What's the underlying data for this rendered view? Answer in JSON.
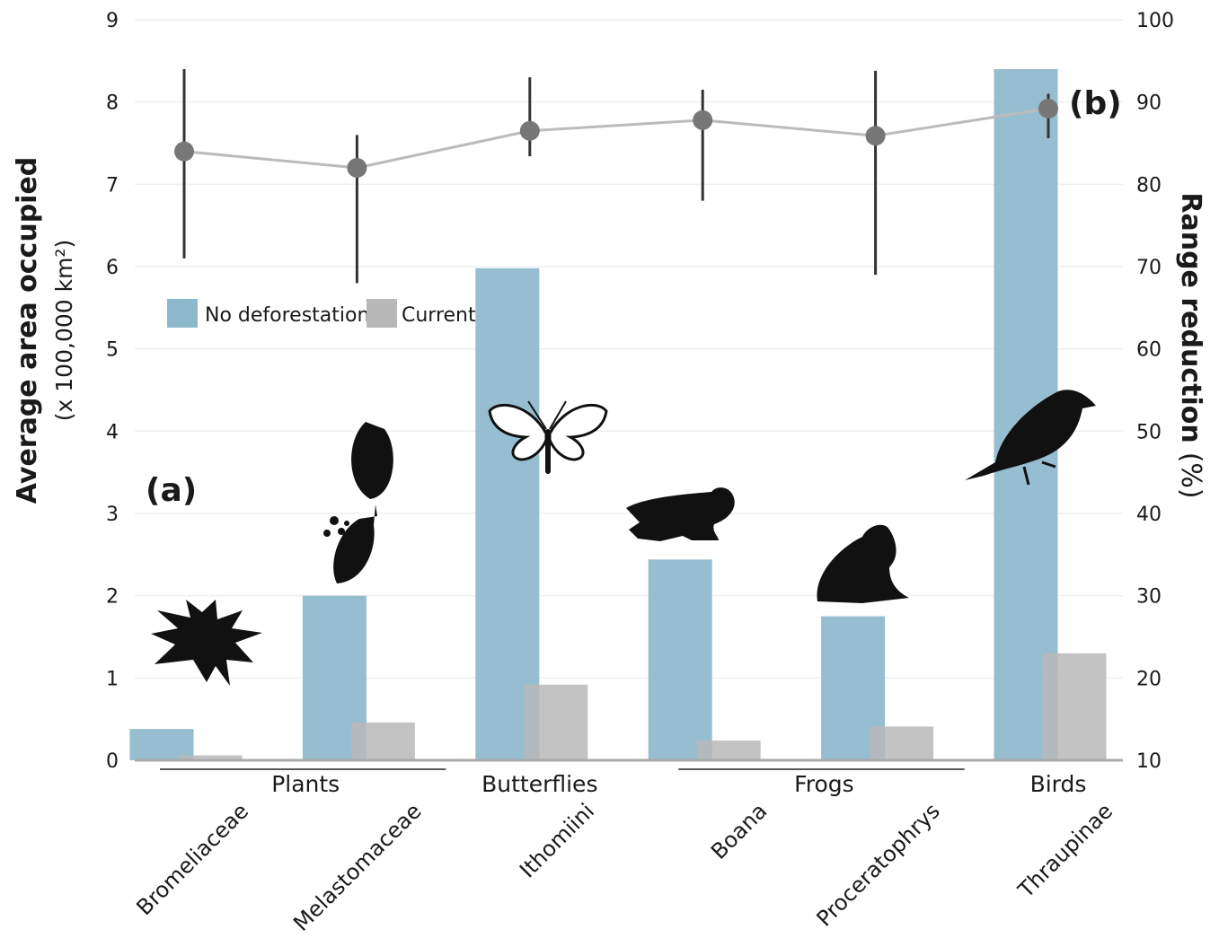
{
  "chart_data": {
    "type": "bar",
    "categories": [
      "Bromeliaceae",
      "Melastomaceae",
      "Ithomiini",
      "Boana",
      "Proceratophrys",
      "Thraupinae"
    ],
    "groups": [
      {
        "label": "Plants",
        "categories": [
          "Bromeliaceae",
          "Melastomaceae"
        ]
      },
      {
        "label": "Butterflies",
        "categories": [
          "Ithomiini"
        ]
      },
      {
        "label": "Frogs",
        "categories": [
          "Boana",
          "Proceratophrys"
        ]
      },
      {
        "label": "Birds",
        "categories": [
          "Thraupinae"
        ]
      }
    ],
    "series": [
      {
        "name": "No deforestation",
        "axis": "left",
        "kind": "bar",
        "color": "#8db8cc",
        "values": [
          0.38,
          2.0,
          5.98,
          2.44,
          1.75,
          8.4
        ]
      },
      {
        "name": "Current",
        "axis": "left",
        "kind": "bar",
        "color": "#b8b8b8",
        "values": [
          0.06,
          0.46,
          0.92,
          0.24,
          0.41,
          1.3
        ]
      },
      {
        "name": "",
        "axis": "right",
        "kind": "line",
        "color": "#bbbbbb",
        "values": [
          84.0,
          82.0,
          86.5,
          87.8,
          85.9,
          89.2
        ],
        "error_low": [
          71.0,
          68.0,
          83.4,
          78.0,
          69.0,
          85.6
        ],
        "error_high": [
          94.0,
          86.0,
          93.0,
          91.5,
          93.8,
          91.0
        ]
      }
    ],
    "ylabel": "Average area occupied",
    "ylabel_sub": "(x 100,000 km²)",
    "y2label_main": "Range reduction",
    "y2label_unit": "(%)",
    "ylim": [
      0,
      9
    ],
    "y2lim": [
      10,
      100
    ],
    "yticks": [
      "0",
      "1",
      "2",
      "3",
      "4",
      "5",
      "6",
      "7",
      "8",
      "9"
    ],
    "y2ticks": [
      "10",
      "20",
      "30",
      "40",
      "50",
      "60",
      "70",
      "80",
      "90",
      "100"
    ],
    "panel_labels": [
      "(a)",
      "(b)"
    ],
    "legend_position": "upper-left",
    "grid": true
  }
}
